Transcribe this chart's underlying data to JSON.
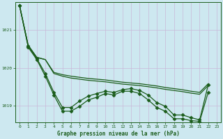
{
  "title": "Graphe pression niveau de la mer (hPa)",
  "background_color": "#cde8f0",
  "plot_bg_color": "#cde8f0",
  "line_color": "#1a5c1a",
  "grid_color": "#aaaacc",
  "tick_color": "#1a5c1a",
  "xlabel_color": "#1a5c1a",
  "xlim_min": -0.5,
  "xlim_max": 23.5,
  "ylim_min": 1018.55,
  "ylim_max": 1021.75,
  "yticks": [
    1019,
    1020,
    1021
  ],
  "xticks": [
    0,
    1,
    2,
    3,
    4,
    5,
    6,
    7,
    8,
    9,
    10,
    11,
    12,
    13,
    14,
    15,
    16,
    17,
    18,
    19,
    20,
    21,
    22,
    23
  ],
  "smooth_lines": [
    [
      1021.65,
      1020.6,
      1020.28,
      1020.22,
      1019.88,
      1019.82,
      1019.78,
      1019.75,
      1019.72,
      1019.7,
      1019.68,
      1019.65,
      1019.62,
      1019.6,
      1019.58,
      1019.55,
      1019.52,
      1019.48,
      1019.45,
      1019.42,
      1019.38,
      1019.35,
      1019.58
    ],
    [
      1021.65,
      1020.6,
      1020.28,
      1020.22,
      1019.85,
      1019.78,
      1019.73,
      1019.7,
      1019.67,
      1019.65,
      1019.63,
      1019.6,
      1019.57,
      1019.55,
      1019.53,
      1019.5,
      1019.47,
      1019.43,
      1019.4,
      1019.37,
      1019.33,
      1019.3,
      1019.53
    ]
  ],
  "marker_lines": [
    {
      "x": [
        0,
        1,
        2,
        3,
        4,
        5,
        6,
        7,
        8,
        9,
        10,
        11,
        12,
        13,
        14,
        15,
        16,
        17,
        18,
        19,
        20,
        21,
        22
      ],
      "y": [
        1021.65,
        1020.58,
        1020.25,
        1019.85,
        1019.35,
        1018.95,
        1018.95,
        1019.12,
        1019.25,
        1019.32,
        1019.38,
        1019.35,
        1019.42,
        1019.45,
        1019.4,
        1019.28,
        1019.08,
        1018.98,
        1018.75,
        1018.75,
        1018.68,
        1018.62,
        1019.55
      ]
    },
    {
      "x": [
        0,
        1,
        2,
        3,
        4,
        5,
        6,
        7,
        8,
        9,
        10,
        11,
        12,
        13,
        14,
        15,
        16,
        17,
        18,
        19,
        20,
        21,
        22
      ],
      "y": [
        1021.65,
        1020.55,
        1020.22,
        1019.78,
        1019.28,
        1018.85,
        1018.85,
        1018.98,
        1019.15,
        1019.22,
        1019.32,
        1019.28,
        1019.38,
        1019.38,
        1019.32,
        1019.15,
        1018.95,
        1018.85,
        1018.65,
        1018.65,
        1018.6,
        1018.58,
        1019.35
      ]
    }
  ]
}
